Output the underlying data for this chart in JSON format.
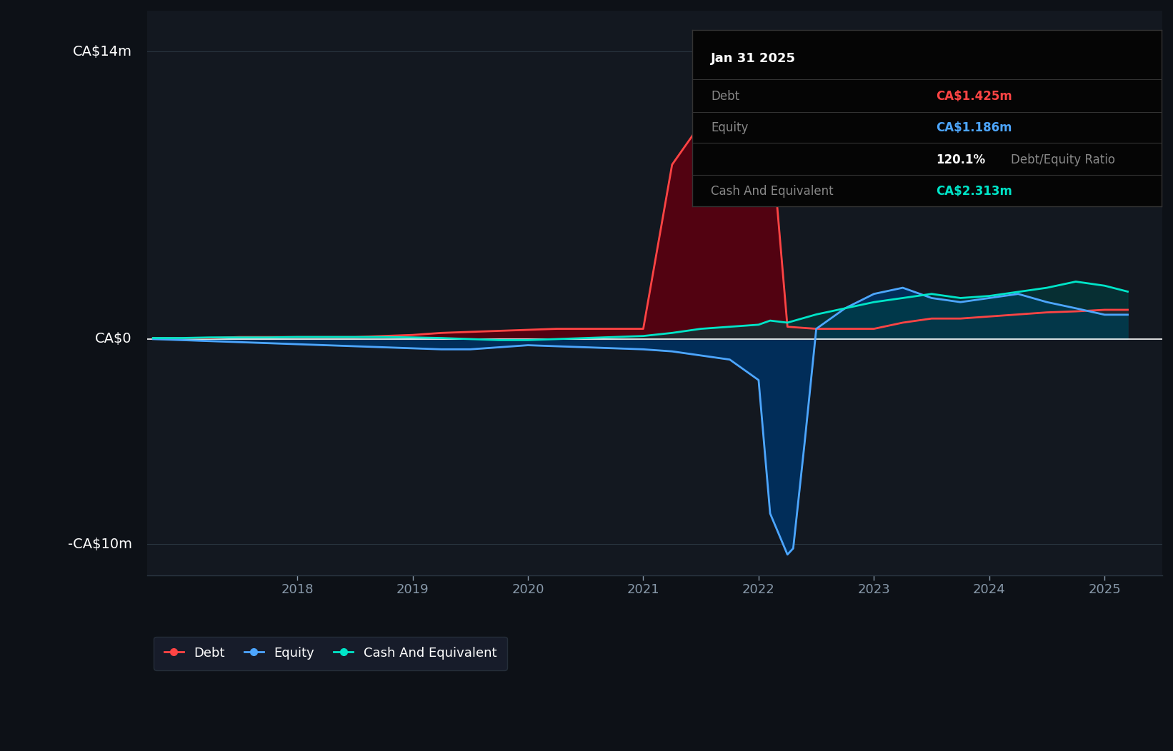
{
  "background_color": "#0d1117",
  "plot_bg_color": "#131820",
  "debt_color": "#ff4444",
  "equity_color": "#4da6ff",
  "cash_color": "#00e5c8",
  "debt_fill_color": "#5a0010",
  "equity_fill_color": "#003060",
  "cash_fill_color": "#004040",
  "ylabel_ca14": "CA$14m",
  "ylabel_ca0": "CA$0",
  "ylabel_minus10": "-CA$10m",
  "ylim": [
    -11.5,
    16
  ],
  "xlim_start": 2016.7,
  "xlim_end": 2025.5,
  "xtick_labels": [
    "2018",
    "2019",
    "2020",
    "2021",
    "2022",
    "2023",
    "2024",
    "2025"
  ],
  "xtick_positions": [
    2018,
    2019,
    2020,
    2021,
    2022,
    2023,
    2024,
    2025
  ],
  "legend_items": [
    "Debt",
    "Equity",
    "Cash And Equivalent"
  ],
  "info_title": "Jan 31 2025",
  "info_debt_label": "Debt",
  "info_debt_value": "CA$1.425m",
  "info_equity_label": "Equity",
  "info_equity_value": "CA$1.186m",
  "info_ratio": "120.1%",
  "info_ratio_text": "Debt/Equity Ratio",
  "info_cash_label": "Cash And Equivalent",
  "info_cash_value": "CA$2.313m",
  "debt_x": [
    2016.75,
    2017.0,
    2017.25,
    2017.5,
    2017.75,
    2018.0,
    2018.25,
    2018.5,
    2018.75,
    2019.0,
    2019.25,
    2019.5,
    2019.75,
    2020.0,
    2020.25,
    2020.5,
    2020.75,
    2021.0,
    2021.25,
    2021.5,
    2021.75,
    2021.9,
    2022.0,
    2022.1,
    2022.25,
    2022.5,
    2022.75,
    2023.0,
    2023.25,
    2023.5,
    2023.75,
    2024.0,
    2024.25,
    2024.5,
    2024.75,
    2025.0,
    2025.2
  ],
  "debt_y": [
    0.05,
    0.05,
    0.05,
    0.1,
    0.1,
    0.1,
    0.1,
    0.1,
    0.15,
    0.2,
    0.3,
    0.35,
    0.4,
    0.45,
    0.5,
    0.5,
    0.5,
    0.5,
    8.5,
    10.5,
    11.2,
    11.0,
    10.8,
    10.5,
    0.6,
    0.5,
    0.5,
    0.5,
    0.8,
    1.0,
    1.0,
    1.1,
    1.2,
    1.3,
    1.35,
    1.425,
    1.425
  ],
  "equity_x": [
    2016.75,
    2017.0,
    2017.25,
    2017.5,
    2017.75,
    2018.0,
    2018.25,
    2018.5,
    2018.75,
    2019.0,
    2019.25,
    2019.5,
    2019.75,
    2020.0,
    2020.25,
    2020.5,
    2020.75,
    2021.0,
    2021.25,
    2021.5,
    2021.75,
    2022.0,
    2022.1,
    2022.25,
    2022.3,
    2022.4,
    2022.5,
    2022.75,
    2023.0,
    2023.25,
    2023.5,
    2023.75,
    2024.0,
    2024.25,
    2024.5,
    2024.75,
    2025.0,
    2025.2
  ],
  "equity_y": [
    0.0,
    -0.05,
    -0.1,
    -0.15,
    -0.2,
    -0.25,
    -0.3,
    -0.35,
    -0.4,
    -0.45,
    -0.5,
    -0.5,
    -0.4,
    -0.3,
    -0.35,
    -0.4,
    -0.45,
    -0.5,
    -0.6,
    -0.8,
    -1.0,
    -2.0,
    -8.5,
    -10.5,
    -10.2,
    -5.0,
    0.5,
    1.5,
    2.2,
    2.5,
    2.0,
    1.8,
    2.0,
    2.2,
    1.8,
    1.5,
    1.186,
    1.186
  ],
  "cash_x": [
    2016.75,
    2017.0,
    2017.25,
    2017.5,
    2017.75,
    2018.0,
    2018.25,
    2018.5,
    2018.75,
    2019.0,
    2019.25,
    2019.5,
    2019.75,
    2020.0,
    2020.25,
    2020.5,
    2020.75,
    2021.0,
    2021.25,
    2021.5,
    2021.75,
    2022.0,
    2022.1,
    2022.25,
    2022.5,
    2022.75,
    2023.0,
    2023.25,
    2023.5,
    2023.75,
    2024.0,
    2024.25,
    2024.5,
    2024.75,
    2025.0,
    2025.2
  ],
  "cash_y": [
    0.05,
    0.05,
    0.08,
    0.08,
    0.08,
    0.1,
    0.1,
    0.1,
    0.1,
    0.08,
    0.05,
    0.0,
    -0.05,
    -0.05,
    0.0,
    0.05,
    0.1,
    0.15,
    0.3,
    0.5,
    0.6,
    0.7,
    0.9,
    0.8,
    1.2,
    1.5,
    1.8,
    2.0,
    2.2,
    2.0,
    2.1,
    2.3,
    2.5,
    2.8,
    2.6,
    2.313
  ]
}
